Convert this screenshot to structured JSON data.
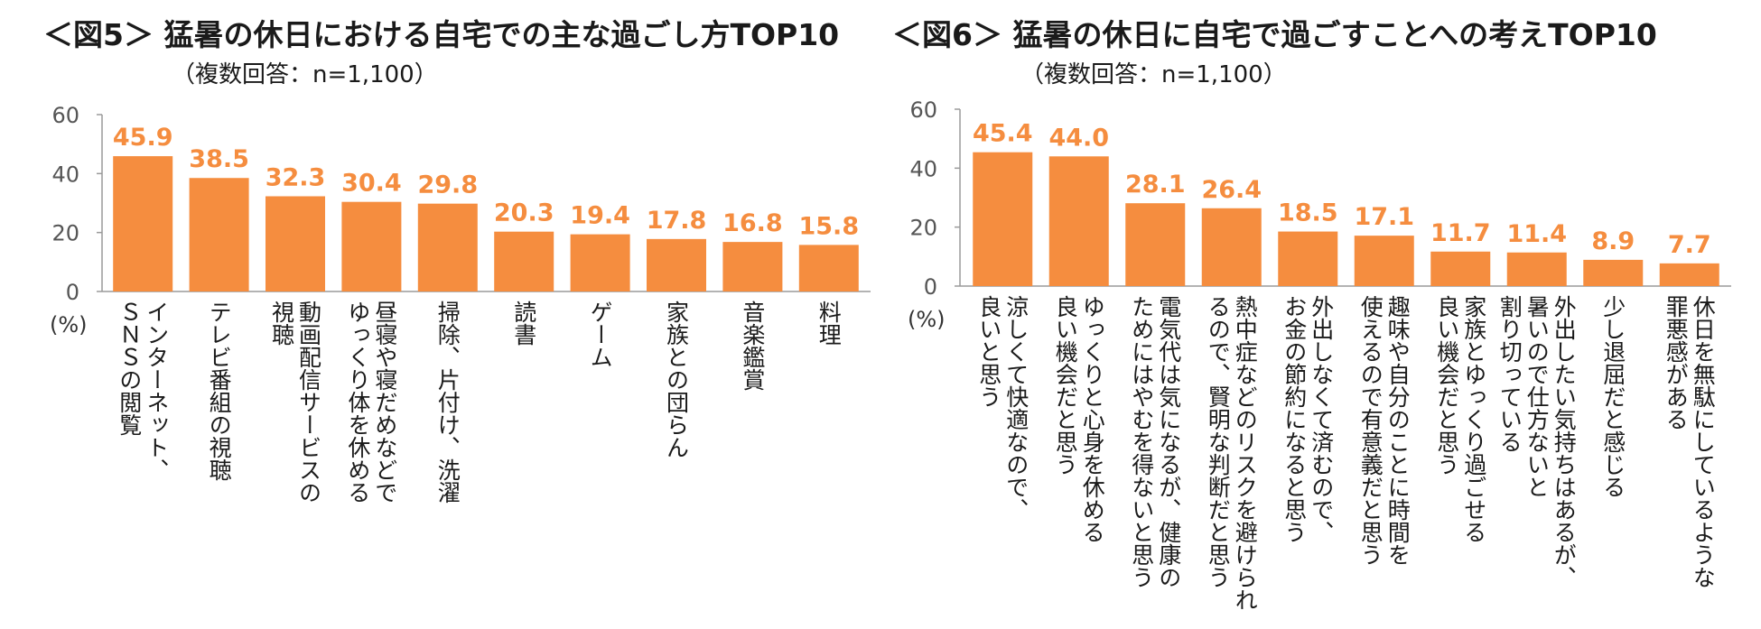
{
  "accent_color": "#F58D3F",
  "chart_data": [
    {
      "type": "bar",
      "title": "＜図5＞ 猛暑の休日における自宅での主な過ごし方TOP10",
      "subtitle": "（複数回答：n=1,100）",
      "ylabel": "(%)",
      "ylim": [
        0,
        60
      ],
      "yticks": [
        "0",
        "20",
        "40",
        "60"
      ],
      "grid": false,
      "categories": [
        [
          "インターネット、",
          "ＳＮＳの閲覧"
        ],
        [
          "テレビ番組の視聴"
        ],
        [
          "動画配信サービスの",
          "視聴"
        ],
        [
          "昼寝や寝だめなどで",
          "ゆっくり体を休める"
        ],
        [
          "掃除、片付け、洗濯"
        ],
        [
          "読書"
        ],
        [
          "ゲーム"
        ],
        [
          "家族との団らん"
        ],
        [
          "音楽鑑賞"
        ],
        [
          "料理"
        ]
      ],
      "values": [
        45.9,
        38.5,
        32.3,
        30.4,
        29.8,
        20.3,
        19.4,
        17.8,
        16.8,
        15.8
      ],
      "value_labels": [
        "45.9",
        "38.5",
        "32.3",
        "30.4",
        "29.8",
        "20.3",
        "19.4",
        "17.8",
        "16.8",
        "15.8"
      ]
    },
    {
      "type": "bar",
      "title": "＜図6＞ 猛暑の休日に自宅で過ごすことへの考えTOP10",
      "subtitle": "（複数回答：n=1,100）",
      "ylabel": "(%)",
      "ylim": [
        0,
        60
      ],
      "yticks": [
        "0",
        "20",
        "40",
        "60"
      ],
      "grid": false,
      "categories": [
        [
          "涼しくて快適なので、",
          "良いと思う"
        ],
        [
          "ゆっくりと心身を休める",
          "良い機会だと思う"
        ],
        [
          "電気代は気になるが、健康の",
          "ためにはやむを得ないと思う"
        ],
        [
          "熱中症などのリスクを避けられ",
          "るので、賢明な判断だと思う"
        ],
        [
          "外出しなくて済むので、",
          "お金の節約になると思う"
        ],
        [
          "趣味や自分のことに時間を",
          "使えるので有意義だと思う"
        ],
        [
          "家族とゆっくり過ごせる",
          "良い機会だと思う"
        ],
        [
          "外出したい気持ちはあるが、",
          "暑いので仕方ないと",
          "割り切っている"
        ],
        [
          "少し退屈だと感じる"
        ],
        [
          "休日を無駄にしているような",
          "罪悪感がある"
        ]
      ],
      "values": [
        45.4,
        44.0,
        28.1,
        26.4,
        18.5,
        17.1,
        11.7,
        11.4,
        8.9,
        7.7
      ],
      "value_labels": [
        "45.4",
        "44.0",
        "28.1",
        "26.4",
        "18.5",
        "17.1",
        "11.7",
        "11.4",
        "8.9",
        "7.7"
      ]
    }
  ]
}
